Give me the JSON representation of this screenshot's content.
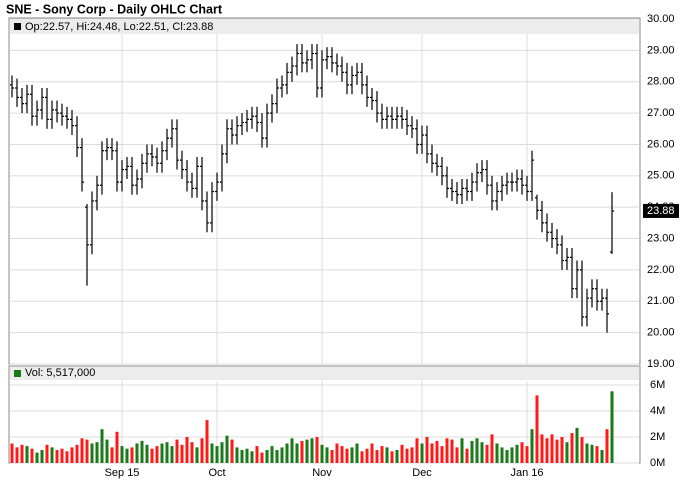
{
  "chart_data": [
    {
      "type": "ohlc",
      "title": "SNE - Sony Corp - Daily OHLC Chart",
      "legend_text": "Op:22.57, Hi:24.48, Lo:22.51, Cl:23.88",
      "color": "#000000",
      "open": [
        27.9,
        27.8,
        27.5,
        27.3,
        27.6,
        26.9,
        27.1,
        27.5,
        26.8,
        27.1,
        27.0,
        26.9,
        26.8,
        26.6,
        25.9,
        24.0,
        22.8,
        24.2,
        24.7,
        25.8,
        25.9,
        25.8,
        24.8,
        25.2,
        25.3,
        24.7,
        24.9,
        25.4,
        25.7,
        25.6,
        25.4,
        25.8,
        26.2,
        26.5,
        25.5,
        25.2,
        24.8,
        24.6,
        25.3,
        24.2,
        23.5,
        24.5,
        24.8,
        25.7,
        26.5,
        26.3,
        26.6,
        26.7,
        26.8,
        26.9,
        26.7,
        26.2,
        27.0,
        27.3,
        27.8,
        27.9,
        28.3,
        28.5,
        28.9,
        28.6,
        28.7,
        28.9,
        27.8,
        28.7,
        28.8,
        28.6,
        28.5,
        28.3,
        27.9,
        28.2,
        28.3,
        27.9,
        27.5,
        27.4,
        27.0,
        26.8,
        26.9,
        26.8,
        26.9,
        26.8,
        26.6,
        26.5,
        26.0,
        26.3,
        25.7,
        25.4,
        25.3,
        25.0,
        24.6,
        24.5,
        24.4,
        24.6,
        24.5,
        24.8,
        25.1,
        25.2,
        24.7,
        24.2,
        24.5,
        24.7,
        24.8,
        24.8,
        24.9,
        24.7,
        24.5,
        24.3,
        23.9,
        23.5,
        23.2,
        23.0,
        22.8,
        22.3,
        22.4,
        21.4,
        22.0,
        20.5,
        21.1,
        21.4,
        21.0,
        21.1,
        22.57
      ],
      "high": [
        28.2,
        28.1,
        27.8,
        27.9,
        27.9,
        27.4,
        27.8,
        27.8,
        27.4,
        27.4,
        27.3,
        27.2,
        27.1,
        26.9,
        26.2,
        24.1,
        24.5,
        25.0,
        26.1,
        26.2,
        26.2,
        26.1,
        25.5,
        25.6,
        25.6,
        25.2,
        25.7,
        26.0,
        26.0,
        25.9,
        26.1,
        26.5,
        26.8,
        26.8,
        25.8,
        25.5,
        25.1,
        25.6,
        25.6,
        24.5,
        24.8,
        25.1,
        26.0,
        26.8,
        26.8,
        26.9,
        27.0,
        27.1,
        27.2,
        27.2,
        27.0,
        27.3,
        27.6,
        28.1,
        28.2,
        28.6,
        28.8,
        29.2,
        29.2,
        29.0,
        29.2,
        29.2,
        29.0,
        29.1,
        29.1,
        28.9,
        28.8,
        28.6,
        28.5,
        28.6,
        28.6,
        28.2,
        27.8,
        27.7,
        27.3,
        27.2,
        27.2,
        27.2,
        27.2,
        27.1,
        26.9,
        26.8,
        26.6,
        26.6,
        26.0,
        25.7,
        25.6,
        25.3,
        24.9,
        24.8,
        24.9,
        24.9,
        25.1,
        25.4,
        25.5,
        25.5,
        25.0,
        24.8,
        25.0,
        25.1,
        25.1,
        25.2,
        25.2,
        25.0,
        25.8,
        24.4,
        24.2,
        23.8,
        23.5,
        23.3,
        23.1,
        22.7,
        22.7,
        22.3,
        22.3,
        21.4,
        21.7,
        21.7,
        21.4,
        21.4,
        24.48
      ],
      "low": [
        27.5,
        27.2,
        27.0,
        27.0,
        26.6,
        26.6,
        26.8,
        26.5,
        26.5,
        26.7,
        26.6,
        26.5,
        26.3,
        25.6,
        24.5,
        21.5,
        22.5,
        23.9,
        24.4,
        25.5,
        25.5,
        24.5,
        24.5,
        24.9,
        24.4,
        24.4,
        24.6,
        25.1,
        25.3,
        25.1,
        25.1,
        25.5,
        25.9,
        25.2,
        24.9,
        24.5,
        24.3,
        24.3,
        23.9,
        23.2,
        23.2,
        24.2,
        24.5,
        25.4,
        26.0,
        26.0,
        26.3,
        26.4,
        26.5,
        26.4,
        25.9,
        25.9,
        26.7,
        27.0,
        27.5,
        27.6,
        28.0,
        28.2,
        28.3,
        28.3,
        28.4,
        27.5,
        27.5,
        28.4,
        28.3,
        28.2,
        28.0,
        27.6,
        27.6,
        27.9,
        27.6,
        27.2,
        27.1,
        26.7,
        26.5,
        26.5,
        26.5,
        26.5,
        26.5,
        26.3,
        26.2,
        25.7,
        25.7,
        25.4,
        25.1,
        25.0,
        24.7,
        24.3,
        24.2,
        24.1,
        24.1,
        24.2,
        24.2,
        24.5,
        24.8,
        24.4,
        23.9,
        23.9,
        24.2,
        24.4,
        24.5,
        24.5,
        24.4,
        24.2,
        24.2,
        23.6,
        23.2,
        22.9,
        22.7,
        22.5,
        22.0,
        22.0,
        21.1,
        21.1,
        20.2,
        20.2,
        20.8,
        20.7,
        20.7,
        20.0,
        22.51
      ],
      "close": [
        27.8,
        27.5,
        27.3,
        27.6,
        26.9,
        27.1,
        27.5,
        26.8,
        27.1,
        27.0,
        26.9,
        26.8,
        26.6,
        25.9,
        24.8,
        22.8,
        24.2,
        24.7,
        25.8,
        25.9,
        25.8,
        24.8,
        25.2,
        25.3,
        24.7,
        24.9,
        25.4,
        25.7,
        25.6,
        25.4,
        25.8,
        26.2,
        26.5,
        25.5,
        25.2,
        24.8,
        24.6,
        25.3,
        24.2,
        23.5,
        24.5,
        24.8,
        25.7,
        26.5,
        26.3,
        26.6,
        26.7,
        26.8,
        26.9,
        26.7,
        26.2,
        27.0,
        27.3,
        27.8,
        27.9,
        28.3,
        28.5,
        28.9,
        28.6,
        28.7,
        28.9,
        27.8,
        28.7,
        28.8,
        28.6,
        28.5,
        28.3,
        27.9,
        28.2,
        28.3,
        27.9,
        27.5,
        27.4,
        27.0,
        26.8,
        26.9,
        26.8,
        26.9,
        26.8,
        26.6,
        26.5,
        26.0,
        26.3,
        25.7,
        25.4,
        25.3,
        25.0,
        24.6,
        24.5,
        24.4,
        24.6,
        24.5,
        24.8,
        25.1,
        25.2,
        24.7,
        24.2,
        24.5,
        24.7,
        24.8,
        24.8,
        24.9,
        24.7,
        24.5,
        25.5,
        23.9,
        23.5,
        23.2,
        23.0,
        22.8,
        22.3,
        22.4,
        21.4,
        22.0,
        20.5,
        21.1,
        21.4,
        21.0,
        21.1,
        20.6,
        23.88
      ],
      "ylim": [
        19,
        30
      ],
      "yticks": [
        {
          "value": 19,
          "label": "19.00"
        },
        {
          "value": 20,
          "label": "20.00"
        },
        {
          "value": 21,
          "label": "21.00"
        },
        {
          "value": 22,
          "label": "22.00"
        },
        {
          "value": 23,
          "label": "23.00"
        },
        {
          "value": 24,
          "label": "24.00"
        },
        {
          "value": 25,
          "label": "25.00"
        },
        {
          "value": 26,
          "label": "26.00"
        },
        {
          "value": 27,
          "label": "27.00"
        },
        {
          "value": 28,
          "label": "28.00"
        },
        {
          "value": 29,
          "label": "29.00"
        },
        {
          "value": 30,
          "label": "30.00"
        }
      ],
      "grid": true
    },
    {
      "type": "bar",
      "legend_text": "Vol: 5,517,000",
      "up_color": "#1a7a1a",
      "down_color": "#ff1a1a",
      "categories": [
        null,
        null,
        null,
        null,
        null,
        null,
        null,
        null,
        null,
        null,
        null,
        null,
        null,
        null,
        null,
        null,
        null,
        null,
        null,
        null,
        null,
        null,
        "Sep 15",
        null,
        null,
        null,
        null,
        null,
        null,
        null,
        null,
        null,
        null,
        null,
        null,
        null,
        null,
        null,
        null,
        null,
        null,
        "Oct",
        null,
        null,
        null,
        null,
        null,
        null,
        null,
        null,
        null,
        null,
        null,
        null,
        null,
        null,
        null,
        null,
        null,
        null,
        null,
        null,
        "Nov",
        null,
        null,
        null,
        null,
        null,
        null,
        null,
        null,
        null,
        null,
        null,
        null,
        null,
        null,
        null,
        null,
        null,
        null,
        null,
        "Dec",
        null,
        null,
        null,
        null,
        null,
        null,
        null,
        null,
        null,
        null,
        null,
        null,
        null,
        null,
        null,
        null,
        null,
        null,
        null,
        null,
        "Jan 16",
        null,
        null,
        null,
        null,
        null,
        null,
        null,
        null,
        null,
        null,
        null,
        null,
        null,
        null,
        null,
        null,
        null
      ],
      "values": [
        1.5,
        1.2,
        1.4,
        1.3,
        1.1,
        0.8,
        1.0,
        1.4,
        1.2,
        1.0,
        1.1,
        0.9,
        1.2,
        1.4,
        1.9,
        1.8,
        1.5,
        1.6,
        2.6,
        1.8,
        1.2,
        2.4,
        1.3,
        1.1,
        1.2,
        1.5,
        1.7,
        1.4,
        1.1,
        1.3,
        1.5,
        1.6,
        1.3,
        1.8,
        1.4,
        2.0,
        1.6,
        1.2,
        1.9,
        3.3,
        1.5,
        1.3,
        1.6,
        2.1,
        1.8,
        1.2,
        1.0,
        1.1,
        0.9,
        1.3,
        0.8,
        1.0,
        1.3,
        1.0,
        1.2,
        1.5,
        1.9,
        1.5,
        1.7,
        1.8,
        1.9,
        2.0,
        1.4,
        1.2,
        1.0,
        1.5,
        1.3,
        1.1,
        1.2,
        1.5,
        0.9,
        1.1,
        1.5,
        1.0,
        1.3,
        1.2,
        0.9,
        1.0,
        1.4,
        1.1,
        1.2,
        1.9,
        1.5,
        2.0,
        1.5,
        1.7,
        1.3,
        1.9,
        1.8,
        1.2,
        1.9,
        1.1,
        1.7,
        1.9,
        1.6,
        1.4,
        2.2,
        1.5,
        1.2,
        1.0,
        1.2,
        1.4,
        1.6,
        1.3,
        2.6,
        5.2,
        2.2,
        1.9,
        2.2,
        1.8,
        2.0,
        1.6,
        2.3,
        2.7,
        2.0,
        1.5,
        1.4,
        1.3,
        1.0,
        2.6,
        5.517
      ],
      "ylim": [
        0,
        7.3
      ],
      "yticks": [
        {
          "value": 0,
          "label": "0M"
        },
        {
          "value": 2,
          "label": "2M"
        },
        {
          "value": 4,
          "label": "4M"
        },
        {
          "value": 6,
          "label": "6M"
        }
      ],
      "grid": true
    }
  ]
}
